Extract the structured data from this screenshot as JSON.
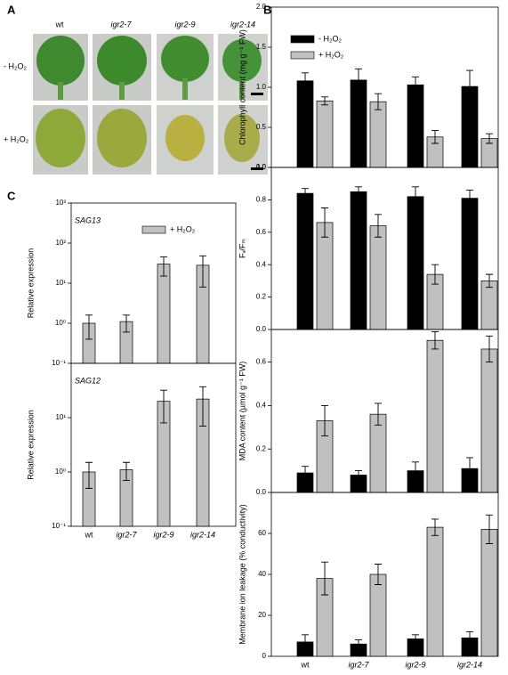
{
  "photo_panel": {
    "label": "A",
    "columns": [
      "wt",
      "igr2-7",
      "igr2-9",
      "igr2-14"
    ],
    "rows": [
      "- H₂O₂",
      "+ H₂O₂"
    ]
  },
  "panel_labels": [
    "B",
    "C"
  ],
  "chart_data": [
    {
      "type": "bar",
      "ylabel": "Chlorophyll content (mg g⁻¹ FW)",
      "ylim": [
        0,
        2
      ],
      "yticks": [
        {
          "value": 0,
          "label": "0.0"
        },
        0.5,
        {
          "value": 1,
          "label": "1.0"
        },
        1.5,
        {
          "value": 2,
          "label": "2.0"
        }
      ],
      "legend": "upper left",
      "series": [
        {
          "name": "- H₂O₂",
          "color": "#000000",
          "values": [
            1.08,
            1.09,
            1.03,
            1.01
          ],
          "errors": [
            0.1,
            0.14,
            0.1,
            0.2
          ]
        },
        {
          "name": "+ H₂O₂",
          "color": "#c0c0c0",
          "values": [
            0.83,
            0.82,
            0.38,
            0.36
          ],
          "errors": [
            0.05,
            0.1,
            0.08,
            0.06
          ]
        }
      ]
    },
    {
      "type": "bar",
      "ylabel": "Fᵥ/Fₘ",
      "ylim": [
        0,
        1
      ],
      "yticks": [
        {
          "value": 0,
          "label": "0.0"
        },
        0.2,
        0.4,
        0.6,
        0.8,
        {
          "value": 1,
          "label": "1.0"
        }
      ],
      "series": [
        {
          "color": "#000000",
          "values": [
            0.84,
            0.85,
            0.82,
            0.81
          ],
          "errors": [
            0.03,
            0.03,
            0.06,
            0.05
          ]
        },
        {
          "color": "#c0c0c0",
          "values": [
            0.66,
            0.64,
            0.34,
            0.3
          ],
          "errors": [
            0.09,
            0.07,
            0.06,
            0.04
          ]
        }
      ]
    },
    {
      "type": "bar",
      "ylabel": "MDA content (µmol g⁻¹ FW)",
      "ylim": [
        0,
        0.75
      ],
      "yticks": [
        {
          "value": 0,
          "label": "0.0"
        },
        0.2,
        0.4,
        0.6
      ],
      "series": [
        {
          "color": "#000000",
          "values": [
            0.09,
            0.08,
            0.1,
            0.11
          ],
          "errors": [
            0.03,
            0.02,
            0.04,
            0.05
          ]
        },
        {
          "color": "#c0c0c0",
          "values": [
            0.33,
            0.36,
            0.7,
            0.66
          ],
          "errors": [
            0.07,
            0.05,
            0.04,
            0.06
          ]
        }
      ]
    },
    {
      "type": "bar",
      "ylabel": "Membrane ion leakage (% conductivity)",
      "ylim": [
        0,
        80
      ],
      "yticks": [
        0,
        20,
        40,
        60
      ],
      "categories": [
        "wt",
        "igr2-7",
        "igr2-9",
        "igr2-14"
      ],
      "series": [
        {
          "color": "#000000",
          "values": [
            7,
            6,
            8.5,
            9
          ],
          "errors": [
            3.5,
            2,
            2,
            3
          ]
        },
        {
          "color": "#c0c0c0",
          "values": [
            38,
            40,
            63,
            62
          ],
          "errors": [
            8,
            5,
            4,
            7
          ]
        }
      ]
    },
    {
      "type": "bar",
      "ylabel": "Relative expression",
      "annotation": "SAG13",
      "log": true,
      "ylim": [
        0.1,
        1000
      ],
      "yticks": [
        {
          "value": 0.1,
          "label": "10⁻¹"
        },
        {
          "value": 1,
          "label": "10⁰"
        },
        {
          "value": 10,
          "label": "10¹"
        },
        {
          "value": 100,
          "label": "10²"
        },
        {
          "value": 1000,
          "label": "10³"
        }
      ],
      "legend": "upper right",
      "series": [
        {
          "name": "+ H₂O₂",
          "color": "#c0c0c0",
          "values": [
            1,
            1.1,
            30,
            28
          ],
          "errors": [
            0.6,
            0.5,
            15,
            20
          ]
        }
      ]
    },
    {
      "type": "bar",
      "ylabel": "Relative expression",
      "annotation": "SAG12",
      "log": true,
      "ylim": [
        0.1,
        100
      ],
      "yticks": [
        {
          "value": 0.1,
          "label": "10⁻¹"
        },
        {
          "value": 1,
          "label": "10⁰"
        },
        {
          "value": 10,
          "label": "10¹"
        }
      ],
      "categories": [
        "wt",
        "igr2-7",
        "igr2-9",
        "igr2-14"
      ],
      "series": [
        {
          "color": "#c0c0c0",
          "values": [
            1,
            1.1,
            20,
            22
          ],
          "errors": [
            0.5,
            0.4,
            12,
            15
          ]
        }
      ]
    }
  ]
}
